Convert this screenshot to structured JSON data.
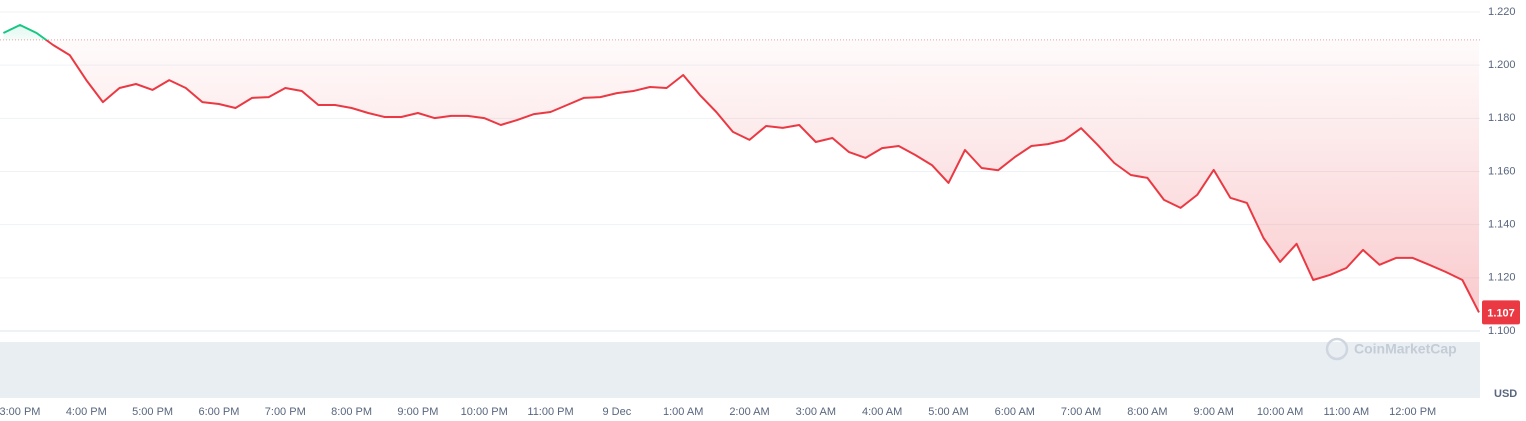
{
  "chart_data": {
    "type": "line",
    "categories": [
      null,
      "3:00 PM",
      null,
      null,
      null,
      "4:00 PM",
      null,
      null,
      null,
      "5:00 PM",
      null,
      null,
      null,
      "6:00 PM",
      null,
      null,
      null,
      "7:00 PM",
      null,
      null,
      null,
      "8:00 PM",
      null,
      null,
      null,
      "9:00 PM",
      null,
      null,
      null,
      "10:00 PM",
      null,
      null,
      null,
      "11:00 PM",
      null,
      null,
      null,
      "9 Dec",
      null,
      null,
      null,
      "1:00 AM",
      null,
      null,
      null,
      "2:00 AM",
      null,
      null,
      null,
      "3:00 AM",
      null,
      null,
      null,
      "4:00 AM",
      null,
      null,
      null,
      "5:00 AM",
      null,
      null,
      null,
      "6:00 AM",
      null,
      null,
      null,
      "7:00 AM",
      null,
      null,
      null,
      "8:00 AM",
      null,
      null,
      null,
      "9:00 AM",
      null,
      null,
      null,
      "10:00 AM",
      null,
      null,
      null,
      "11:00 AM",
      null,
      null,
      null,
      "12:00 PM",
      null,
      null,
      null,
      null
    ],
    "values": [
      1.2121,
      1.2151,
      1.2121,
      1.2076,
      1.2038,
      1.1944,
      1.1861,
      1.1914,
      1.1929,
      1.1907,
      1.1944,
      1.1914,
      1.1861,
      1.1854,
      1.1839,
      1.1877,
      1.188,
      1.1914,
      1.1903,
      1.185,
      1.185,
      1.1839,
      1.182,
      1.1805,
      1.1805,
      1.182,
      1.1801,
      1.1809,
      1.1809,
      1.1801,
      1.1775,
      1.1794,
      1.1816,
      1.1824,
      1.185,
      1.1877,
      1.188,
      1.1895,
      1.1903,
      1.1918,
      1.1914,
      1.1963,
      1.1888,
      1.1824,
      1.1749,
      1.1719,
      1.1771,
      1.1764,
      1.1775,
      1.1711,
      1.1726,
      1.1673,
      1.1651,
      1.1688,
      1.1696,
      1.1662,
      1.1624,
      1.1557,
      1.1681,
      1.1613,
      1.1605,
      1.1654,
      1.1696,
      1.1703,
      1.1718,
      1.1763,
      1.17,
      1.1632,
      1.1587,
      1.1576,
      1.1493,
      1.1463,
      1.1512,
      1.1606,
      1.1501,
      1.1482,
      1.135,
      1.126,
      1.1328,
      1.1192,
      1.1211,
      1.1237,
      1.1305,
      1.1249,
      1.1275,
      1.1275,
      1.1249,
      1.1222,
      1.1192,
      1.107
    ],
    "color": "#ea3943",
    "up_color": "#16c784",
    "reference_line": 1.2095,
    "ylim": [
      1.1,
      1.22
    ],
    "yticks": [
      {
        "value": 1.1,
        "label": "1.100"
      },
      {
        "value": 1.12,
        "label": "1.120"
      },
      {
        "value": 1.14,
        "label": "1.140"
      },
      {
        "value": 1.16,
        "label": "1.160"
      },
      {
        "value": 1.18,
        "label": "1.180"
      },
      {
        "value": 1.2,
        "label": "1.200"
      },
      {
        "value": 1.22,
        "label": "1.220"
      }
    ],
    "grid": true,
    "y_axis_unit": "USD",
    "watermark": "CoinMarketCap"
  }
}
